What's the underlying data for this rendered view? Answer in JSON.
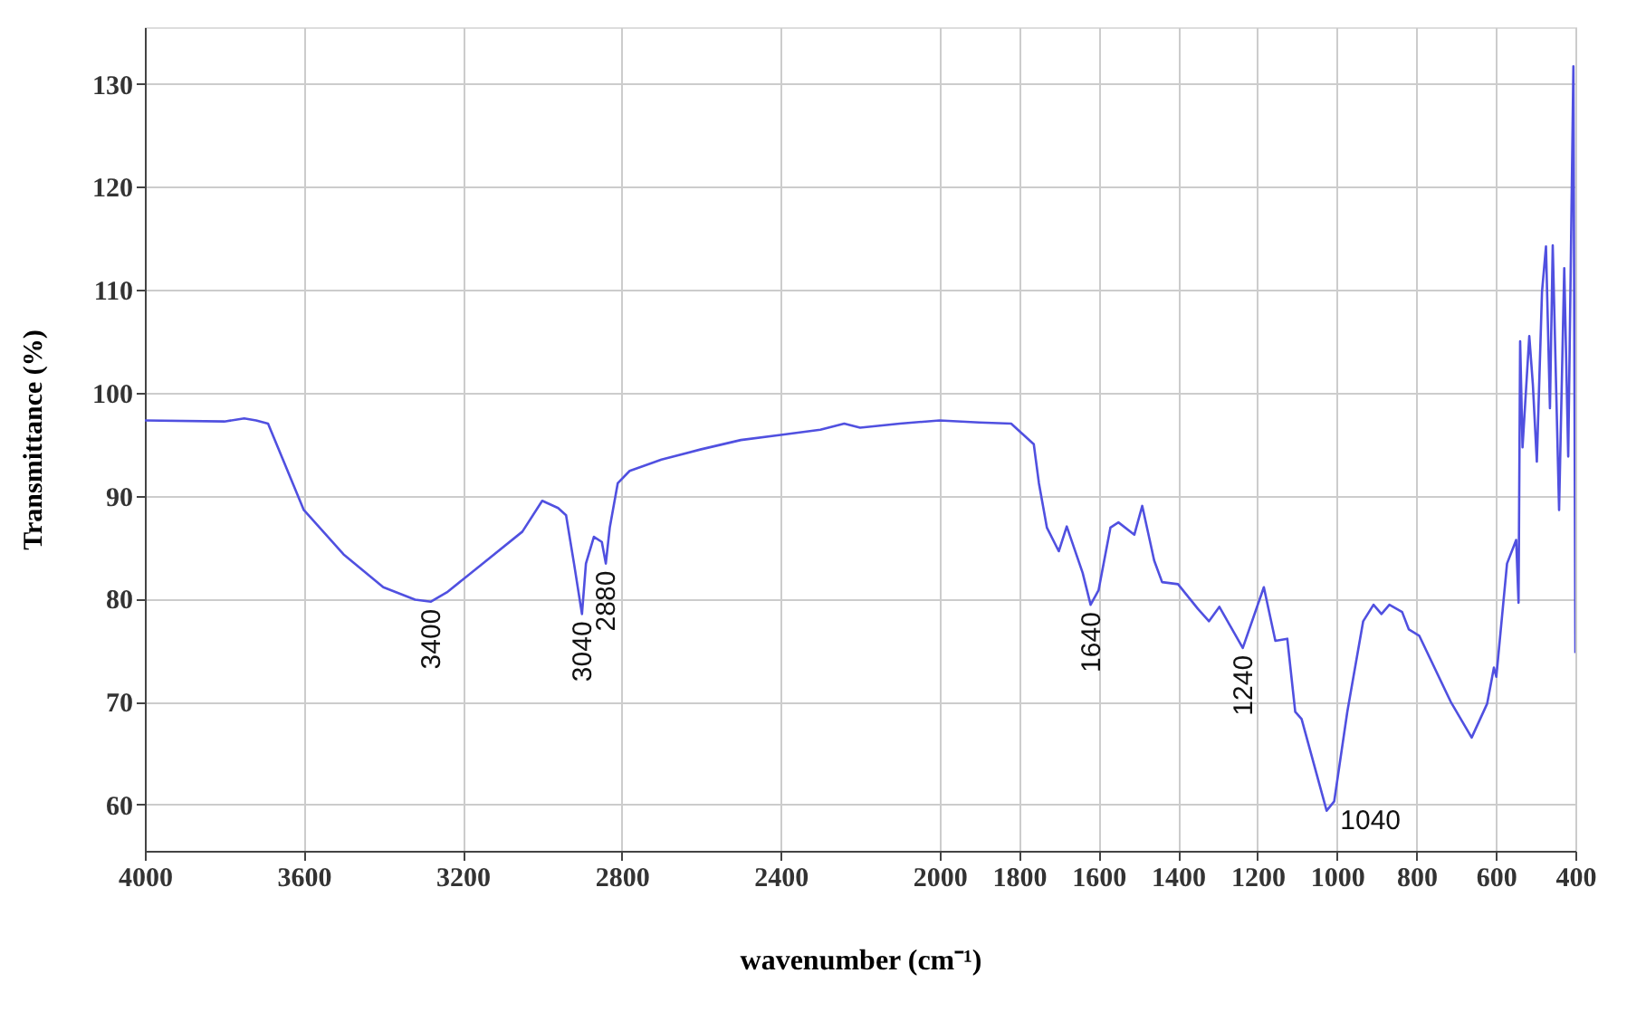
{
  "chart_data": {
    "type": "line",
    "xlabel": "wavenumber (cm⁻¹)",
    "ylabel": "Transmittance (%)",
    "xlim": [
      4000,
      400
    ],
    "ylim": [
      55.5,
      135.5
    ],
    "xticks": [
      4000,
      3600,
      3200,
      2800,
      2400,
      2000,
      1800,
      1600,
      1400,
      1200,
      1000,
      800,
      600,
      400
    ],
    "yticks": [
      {
        "value": 60,
        "label": "60"
      },
      70,
      80,
      90,
      100,
      110,
      120,
      130
    ],
    "grid": true,
    "marker": "none",
    "line_style": "solid",
    "series": [
      {
        "color": "#5050e0",
        "x": [
          4000,
          3800,
          3750,
          3720,
          3690,
          3600,
          3500,
          3400,
          3320,
          3280,
          3240,
          3150,
          3050,
          3000,
          2960,
          2940,
          2920,
          2900,
          2890,
          2870,
          2850,
          2840,
          2830,
          2810,
          2780,
          2700,
          2600,
          2500,
          2400,
          2300,
          2240,
          2200,
          2100,
          2000,
          1900,
          1820,
          1763,
          1750,
          1730,
          1700,
          1680,
          1640,
          1620,
          1600,
          1570,
          1550,
          1510,
          1490,
          1460,
          1440,
          1400,
          1350,
          1322,
          1296,
          1237,
          1184,
          1155,
          1125,
          1105,
          1089,
          1026,
          1007,
          974,
          934,
          908,
          888,
          868,
          836,
          819,
          793,
          714,
          661,
          622,
          605,
          599,
          572,
          549,
          543,
          539,
          533,
          516,
          507,
          497,
          484,
          474,
          464,
          457,
          441,
          428,
          418,
          405,
          400
        ],
        "values": [
          97.3,
          97.2,
          97.5,
          97.3,
          97,
          88.6,
          84.3,
          81.1,
          79.9,
          79.7,
          80.6,
          83.4,
          86.5,
          89.5,
          88.8,
          88.1,
          83.4,
          78.5,
          83.4,
          86,
          85.5,
          83.4,
          86.9,
          91.2,
          92.4,
          93.5,
          94.5,
          95.4,
          95.9,
          96.4,
          97,
          96.6,
          97,
          97.3,
          97.1,
          97,
          95,
          91.2,
          86.9,
          84.6,
          87,
          82.5,
          79.4,
          80.8,
          86.9,
          87.4,
          86.2,
          89,
          83.7,
          81.6,
          81.4,
          79,
          77.8,
          79.2,
          75.2,
          81.1,
          75.9,
          76.1,
          69,
          68.3,
          59.4,
          60.3,
          69,
          77.8,
          79.4,
          78.5,
          79.4,
          78.7,
          77,
          76.4,
          70,
          66.5,
          69.8,
          73.3,
          72.4,
          83.4,
          85.7,
          79.6,
          105,
          94.7,
          105.5,
          100.8,
          93.3,
          109.8,
          114.2,
          98.5,
          114.3,
          88.6,
          112.1,
          93.8,
          131.7,
          74.7
        ]
      }
    ],
    "annotations": [
      {
        "text": "3400",
        "x": 3280,
        "y": 79.7
      },
      {
        "text": "3040",
        "x": 2900,
        "y": 78.5
      },
      {
        "text": "2880",
        "x": 2840,
        "y": 83.4
      },
      {
        "text": "1640",
        "x": 1620,
        "y": 79.4
      },
      {
        "text": "1240",
        "x": 1237,
        "y": 75.2
      },
      {
        "text": "1040",
        "x": 1010,
        "y": 59.4
      }
    ]
  }
}
